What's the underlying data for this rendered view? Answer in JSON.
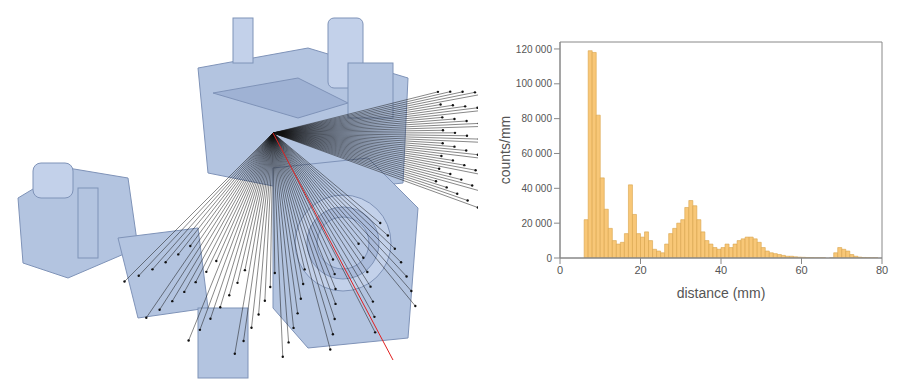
{
  "chart_data": {
    "type": "histogram",
    "x_label": "distance (mm)",
    "y_label": "counts/mm",
    "bins": [
      6,
      7,
      8,
      9,
      10,
      11,
      12,
      13,
      14,
      15,
      16,
      17,
      18,
      19,
      20,
      21,
      22,
      23,
      24,
      25,
      26,
      27,
      28,
      29,
      30,
      31,
      32,
      33,
      34,
      35,
      36,
      37,
      38,
      39,
      40,
      41,
      42,
      43,
      44,
      45,
      46,
      47,
      48,
      49,
      50,
      51,
      52,
      53,
      54,
      55,
      56,
      57,
      58,
      59,
      60,
      61,
      62,
      63,
      64,
      65,
      66,
      67,
      68,
      69,
      70,
      71,
      72,
      73,
      74,
      75,
      76,
      77,
      78,
      79,
      80
    ],
    "values": [
      22000,
      119000,
      118000,
      82000,
      46000,
      28000,
      17000,
      10000,
      8000,
      9000,
      14000,
      42000,
      25000,
      14000,
      12000,
      15000,
      10000,
      5000,
      4000,
      3000,
      8000,
      14000,
      17000,
      20000,
      22000,
      29000,
      33000,
      30000,
      22000,
      15000,
      10000,
      8000,
      6000,
      5000,
      6000,
      8000,
      6000,
      8000,
      10000,
      11000,
      12000,
      12000,
      11000,
      9000,
      6000,
      4000,
      3000,
      2500,
      2000,
      1500,
      1000,
      1000,
      700,
      500,
      400,
      300,
      200,
      100,
      100,
      100,
      0,
      100,
      3000,
      6000,
      5000,
      4000,
      2000,
      1000,
      500,
      300,
      200,
      100,
      100,
      0
    ],
    "color": "#f8c777",
    "xlim": [
      0,
      80
    ],
    "xticks": [
      0,
      20,
      40,
      60,
      80
    ],
    "ylim": [
      0,
      124000
    ],
    "yticks": [
      0,
      {
        "value": 20000,
        "label": "20 000"
      },
      {
        "value": 40000,
        "label": "40 000"
      },
      {
        "value": 60000,
        "label": "60 000"
      },
      {
        "value": 80000,
        "label": "80 000"
      },
      {
        "value": 100000,
        "label": "100 000"
      },
      {
        "value": 120000,
        "label": "120 000"
      }
    ],
    "grid": false
  }
}
